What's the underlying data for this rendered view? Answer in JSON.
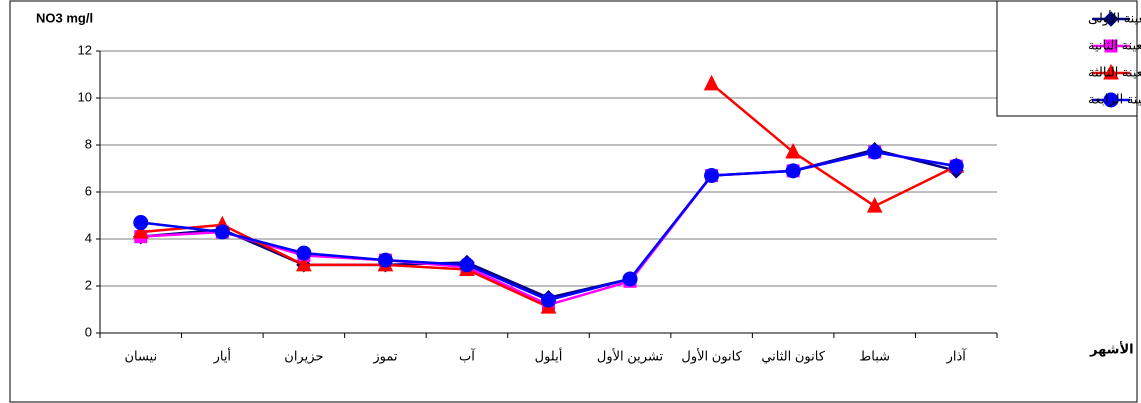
{
  "chart_data": {
    "type": "line",
    "y_label": "NO3 mg/l",
    "x_label": "الأشهر",
    "categories": [
      "نيسان",
      "أيار",
      "حزيران",
      "تموز",
      "آب",
      "أيلول",
      "تشرين الأول",
      "كانون الأول",
      "كانون الثاني",
      "شباط",
      "آذار"
    ],
    "series": [
      {
        "name": "العينة الأولى",
        "color": "#000080",
        "marker": "diamond",
        "values": [
          4.1,
          4.4,
          2.9,
          2.9,
          3.0,
          1.5,
          2.3,
          6.7,
          6.9,
          7.8,
          6.9
        ]
      },
      {
        "name": "العينة الثانية",
        "color": "#ff00ff",
        "marker": "square",
        "values": [
          4.1,
          4.3,
          3.3,
          3.1,
          2.8,
          1.2,
          2.2,
          6.7,
          6.9,
          7.7,
          7.1
        ]
      },
      {
        "name": "العينة الثالثة",
        "color": "#ff0000",
        "marker": "triangle",
        "values": [
          4.3,
          4.6,
          2.9,
          2.9,
          2.7,
          1.1,
          null,
          10.6,
          7.7,
          5.4,
          7.1
        ]
      },
      {
        "name": "العينة الرابعة",
        "color": "#0000ff",
        "marker": "circle",
        "values": [
          4.7,
          4.3,
          3.4,
          3.1,
          2.9,
          1.4,
          2.3,
          6.7,
          6.9,
          7.7,
          7.1
        ]
      }
    ],
    "ylim": [
      0,
      12
    ],
    "yticks": [
      0,
      2,
      4,
      6,
      8,
      10,
      12
    ],
    "grid": true,
    "legend": "right"
  }
}
